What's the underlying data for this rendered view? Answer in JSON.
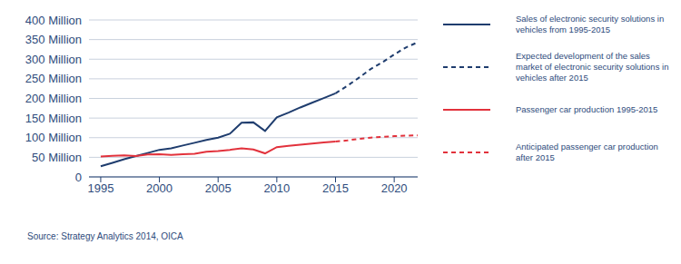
{
  "chart_data": {
    "type": "line",
    "source": "Source: Strategy Analytics 2014, OICA",
    "xlim": [
      1994,
      2022
    ],
    "xticks": [
      1995,
      2000,
      2005,
      2010,
      2015,
      2020
    ],
    "ylim": [
      0,
      400
    ],
    "yticks": [
      0,
      {
        "value": 50,
        "label": "50 Million"
      },
      {
        "value": 100,
        "label": "100 Million"
      },
      {
        "value": 150,
        "label": "150 Million"
      },
      {
        "value": 200,
        "label": "200 Million"
      },
      {
        "value": 250,
        "label": "250 Million"
      },
      {
        "value": 300,
        "label": "300 Million"
      },
      {
        "value": 350,
        "label": "350 Million"
      },
      {
        "value": 400,
        "label": "400 Million"
      }
    ],
    "grid": true,
    "series": [
      {
        "name": "Sales of electronic security solutions in vehicles from 1995-2015",
        "color": "#1f3d6e",
        "line_style": "solid",
        "x": [
          1995,
          1996,
          1997,
          1998,
          1999,
          2000,
          2001,
          2002,
          2003,
          2004,
          2005,
          2006,
          2007,
          2008,
          2009,
          2010,
          2011,
          2012,
          2013,
          2014,
          2015
        ],
        "values": [
          27,
          36,
          45,
          53,
          61,
          69,
          73,
          80,
          87,
          94,
          100,
          110,
          138,
          139,
          117,
          152,
          164,
          177,
          189,
          201,
          213
        ]
      },
      {
        "name": "Expected development of the sales market of electronic security solutions in vehicles after 2015",
        "color": "#1f3d6e",
        "line_style": "dashed",
        "x": [
          2015,
          2016,
          2017,
          2018,
          2019,
          2020,
          2021,
          2022
        ],
        "values": [
          213,
          232,
          253,
          275,
          292,
          312,
          330,
          343
        ]
      },
      {
        "name": "Passenger car production 1995-2015",
        "color": "#e2323c",
        "line_style": "solid",
        "x": [
          1995,
          1996,
          1997,
          1998,
          1999,
          2000,
          2001,
          2002,
          2003,
          2004,
          2005,
          2006,
          2007,
          2008,
          2009,
          2010,
          2011,
          2012,
          2013,
          2014,
          2015
        ],
        "values": [
          52,
          54,
          55,
          53,
          57,
          58,
          56,
          58,
          59,
          64,
          66,
          69,
          73,
          70,
          60,
          76,
          79,
          82,
          85,
          88,
          90
        ]
      },
      {
        "name": "Anticipated passenger car production after 2015",
        "color": "#e2323c",
        "line_style": "dashed",
        "x": [
          2015,
          2016,
          2017,
          2018,
          2019,
          2020,
          2021,
          2022
        ],
        "values": [
          90,
          93,
          97,
          100,
          102,
          104,
          105,
          106
        ]
      }
    ]
  }
}
